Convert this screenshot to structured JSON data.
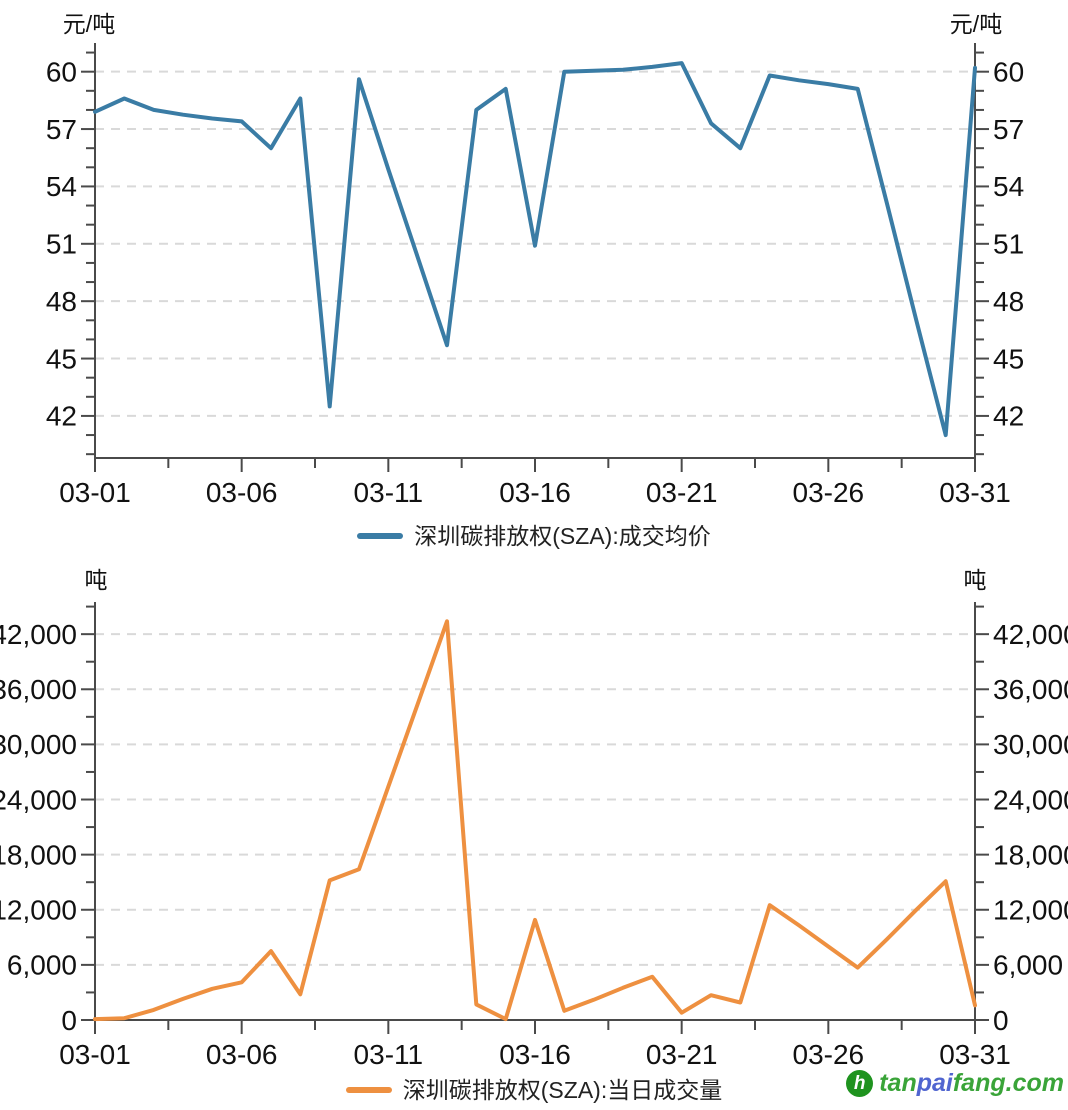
{
  "watermark": {
    "logo_glyph": "h",
    "segments": [
      {
        "text": "tan",
        "color": "#3aa439"
      },
      {
        "text": "pai",
        "color": "#5065d0"
      },
      {
        "text": "fang",
        "color": "#3aa439"
      },
      {
        "text": ".com",
        "color": "#3aa439"
      }
    ]
  },
  "chart_data": [
    {
      "type": "line",
      "series_name": "深圳碳排放权(SZA):成交均价",
      "unit": "元/吨",
      "color": "#3a7ca5",
      "grid": "horizontal-dashed",
      "legend_position": "bottom-center",
      "axes": "left-right-bottom",
      "ylim": [
        39.8,
        61.5
      ],
      "y_ticks": [
        42,
        45,
        48,
        51,
        54,
        57,
        60
      ],
      "y_tick_labels": [
        "42",
        "45",
        "48",
        "51",
        "54",
        "57",
        "60"
      ],
      "y_minor_step": 1,
      "x_tick_labels": [
        "03-01",
        "03-06",
        "03-11",
        "03-16",
        "03-21",
        "03-26",
        "03-31"
      ],
      "x": [
        "03-01",
        "03-02",
        "03-03",
        "03-04",
        "03-05",
        "03-06",
        "03-07",
        "03-08",
        "03-09",
        "03-10",
        "03-11",
        "03-12",
        "03-13",
        "03-14",
        "03-15",
        "03-16",
        "03-17",
        "03-18",
        "03-19",
        "03-20",
        "03-21",
        "03-22",
        "03-23",
        "03-24",
        "03-25",
        "03-26",
        "03-27",
        "03-28",
        "03-29",
        "03-30",
        "03-31"
      ],
      "values": [
        57.9,
        58.6,
        58.0,
        57.75,
        57.55,
        57.4,
        56.0,
        58.6,
        42.5,
        59.6,
        54.9,
        50.3,
        45.7,
        58.0,
        59.1,
        50.9,
        60.0,
        60.05,
        60.1,
        60.25,
        60.45,
        57.3,
        56.0,
        59.8,
        59.55,
        59.35,
        59.1,
        53.1,
        47.0,
        41.0,
        60.2
      ]
    },
    {
      "type": "line",
      "series_name": "深圳碳排放权(SZA):当日成交量",
      "unit": "吨",
      "color": "#ee9040",
      "grid": "horizontal-dashed",
      "legend_position": "bottom-center",
      "axes": "left-right-bottom",
      "ylim": [
        0,
        45500
      ],
      "y_ticks": [
        0,
        6000,
        12000,
        18000,
        24000,
        30000,
        36000,
        42000
      ],
      "y_tick_labels": [
        "0",
        "6,000",
        "12,000",
        "18,000",
        "24,000",
        "30,000",
        "36,000",
        "42,000"
      ],
      "y_minor_step": 3000,
      "x_tick_labels": [
        "03-01",
        "03-06",
        "03-11",
        "03-16",
        "03-21",
        "03-26",
        "03-31"
      ],
      "x": [
        "03-01",
        "03-02",
        "03-03",
        "03-04",
        "03-05",
        "03-06",
        "03-07",
        "03-08",
        "03-09",
        "03-10",
        "03-11",
        "03-12",
        "03-13",
        "03-14",
        "03-15",
        "03-16",
        "03-17",
        "03-18",
        "03-19",
        "03-20",
        "03-21",
        "03-22",
        "03-23",
        "03-24",
        "03-25",
        "03-26",
        "03-27",
        "03-28",
        "03-29",
        "03-30",
        "03-31"
      ],
      "values": [
        100,
        200,
        1100,
        2300,
        3400,
        4100,
        7500,
        2800,
        15200,
        16400,
        25400,
        34400,
        43400,
        1700,
        100,
        10900,
        1000,
        2200,
        3500,
        4700,
        800,
        2700,
        1900,
        12500,
        10300,
        8000,
        5700,
        8800,
        12000,
        15100,
        1600
      ]
    }
  ]
}
